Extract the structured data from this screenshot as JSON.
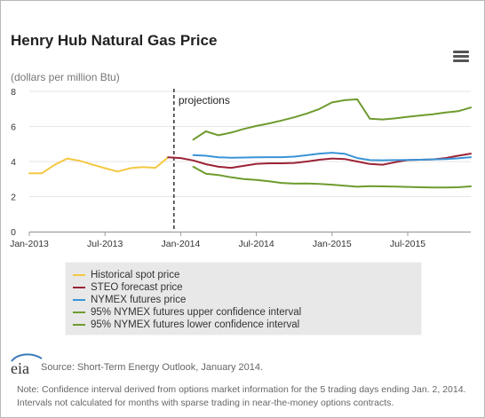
{
  "header": {
    "title": "Henry Hub Natural Gas Price",
    "units": "(dollars per million Btu)"
  },
  "annotation": "projections",
  "legend": [
    {
      "label": "Historical spot price",
      "color": "#f5c842"
    },
    {
      "label": "STEO forecast price",
      "color": "#9b2335"
    },
    {
      "label": "NYMEX futures price",
      "color": "#3a93d6"
    },
    {
      "label": "95% NYMEX futures upper confidence interval",
      "color": "#6e9b2e"
    },
    {
      "label": "95% NYMEX futures lower confidence interval",
      "color": "#6e9b2e"
    }
  ],
  "footer": {
    "logo_text": "eia",
    "source": "Source: Short-Term Energy Outlook, January 2014.",
    "note": "Note: Confidence interval derived from options market information for the 5 trading days ending Jan. 2, 2014. Intervals not calculated for months with sparse trading in near-the-money options contracts."
  },
  "chart_data": {
    "type": "line",
    "title": "Henry Hub Natural Gas Price",
    "ylabel": "(dollars per million Btu)",
    "xlabel": "",
    "ylim": [
      0,
      8
    ],
    "yticks": [
      0,
      2,
      4,
      6,
      8
    ],
    "xlim": [
      "2013-01",
      "2015-12"
    ],
    "xticks": [
      {
        "value": "2013-01",
        "label": "Jan-2013"
      },
      {
        "value": "2013-07",
        "label": "Jul-2013"
      },
      {
        "value": "2014-01",
        "label": "Jan-2014"
      },
      {
        "value": "2014-07",
        "label": "Jul-2014"
      },
      {
        "value": "2015-01",
        "label": "Jan-2015"
      },
      {
        "value": "2015-07",
        "label": "Jul-2015"
      }
    ],
    "projection_start": "2013-12-15",
    "series": [
      {
        "name": "Historical spot price",
        "color": "#f5c842",
        "x": [
          "2013-01",
          "2013-02",
          "2013-03",
          "2013-04",
          "2013-05",
          "2013-06",
          "2013-07",
          "2013-08",
          "2013-09",
          "2013-10",
          "2013-11",
          "2013-12"
        ],
        "y": [
          3.33,
          3.33,
          3.81,
          4.17,
          4.04,
          3.83,
          3.62,
          3.43,
          3.62,
          3.68,
          3.64,
          4.24
        ]
      },
      {
        "name": "STEO forecast price",
        "color": "#9b2335",
        "x": [
          "2013-12",
          "2014-01",
          "2014-02",
          "2014-03",
          "2014-04",
          "2014-05",
          "2014-06",
          "2014-07",
          "2014-08",
          "2014-09",
          "2014-10",
          "2014-11",
          "2014-12",
          "2015-01",
          "2015-02",
          "2015-03",
          "2015-04",
          "2015-05",
          "2015-06",
          "2015-07",
          "2015-08",
          "2015-09",
          "2015-10",
          "2015-11",
          "2015-12"
        ],
        "y": [
          4.24,
          4.2,
          4.06,
          3.85,
          3.7,
          3.64,
          3.75,
          3.87,
          3.9,
          3.9,
          3.92,
          4.0,
          4.1,
          4.17,
          4.14,
          4.0,
          3.86,
          3.82,
          3.96,
          4.08,
          4.1,
          4.12,
          4.2,
          4.33,
          4.45
        ]
      },
      {
        "name": "NYMEX futures price",
        "color": "#3a93d6",
        "x": [
          "2014-02",
          "2014-03",
          "2014-04",
          "2014-05",
          "2014-06",
          "2014-07",
          "2014-08",
          "2014-09",
          "2014-10",
          "2014-11",
          "2014-12",
          "2015-01",
          "2015-02",
          "2015-03",
          "2015-04",
          "2015-05",
          "2015-06",
          "2015-07",
          "2015-08",
          "2015-09",
          "2015-10",
          "2015-11",
          "2015-12"
        ],
        "y": [
          4.37,
          4.33,
          4.24,
          4.22,
          4.23,
          4.24,
          4.25,
          4.25,
          4.28,
          4.36,
          4.45,
          4.5,
          4.44,
          4.2,
          4.08,
          4.07,
          4.08,
          4.09,
          4.1,
          4.12,
          4.14,
          4.18,
          4.25
        ]
      },
      {
        "name": "95% NYMEX futures upper confidence interval",
        "color": "#6e9b2e",
        "x": [
          "2014-02",
          "2014-03",
          "2014-04",
          "2014-05",
          "2014-06",
          "2014-07",
          "2014-08",
          "2014-09",
          "2014-10",
          "2014-11",
          "2014-12",
          "2015-01",
          "2015-02",
          "2015-03",
          "2015-04",
          "2015-05",
          "2015-06",
          "2015-07",
          "2015-08",
          "2015-09",
          "2015-10",
          "2015-11",
          "2015-12"
        ],
        "y": [
          5.25,
          5.72,
          5.5,
          5.65,
          5.86,
          6.03,
          6.17,
          6.34,
          6.52,
          6.74,
          7.0,
          7.37,
          7.5,
          7.55,
          6.44,
          6.4,
          6.46,
          6.55,
          6.63,
          6.7,
          6.8,
          6.87,
          7.08
        ]
      },
      {
        "name": "95% NYMEX futures lower confidence interval",
        "color": "#6e9b2e",
        "x": [
          "2014-02",
          "2014-03",
          "2014-04",
          "2014-05",
          "2014-06",
          "2014-07",
          "2014-08",
          "2014-09",
          "2014-10",
          "2014-11",
          "2014-12",
          "2015-01",
          "2015-02",
          "2015-03",
          "2015-04",
          "2015-05",
          "2015-06",
          "2015-07",
          "2015-08",
          "2015-09",
          "2015-10",
          "2015-11",
          "2015-12"
        ],
        "y": [
          3.7,
          3.3,
          3.23,
          3.1,
          3.0,
          2.95,
          2.87,
          2.78,
          2.74,
          2.75,
          2.72,
          2.68,
          2.62,
          2.56,
          2.6,
          2.58,
          2.57,
          2.55,
          2.53,
          2.52,
          2.52,
          2.53,
          2.58
        ]
      }
    ]
  }
}
